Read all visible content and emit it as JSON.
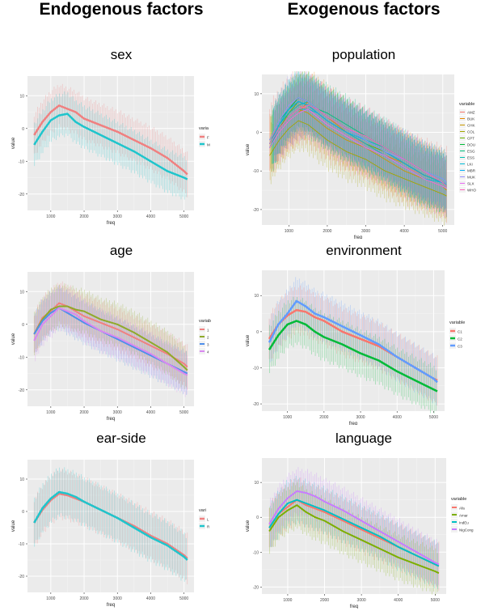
{
  "headers": {
    "left": "Endogenous factors",
    "right": "Exogenous factors"
  },
  "chart_data": [
    {
      "id": "sex",
      "type": "line",
      "title": "sex",
      "xlabel": "freq",
      "ylabel": "value",
      "x": [
        500,
        750,
        1000,
        1250,
        1500,
        1750,
        2000,
        2500,
        3000,
        3500,
        4000,
        4500,
        5000,
        5100
      ],
      "xticks": [
        1000,
        2000,
        3000,
        4000,
        5000
      ],
      "xticklabels": [
        "1000",
        "2000",
        "3000",
        "4000",
        "5000"
      ],
      "xlim": [
        300,
        5300
      ],
      "yticks": [
        10,
        0,
        -10,
        -20
      ],
      "yticklabels": [
        "10",
        "0",
        "-10",
        "-20"
      ],
      "ylim": [
        -25,
        16
      ],
      "legend_title": "varia",
      "series": [
        {
          "name": "F",
          "color": "#F08080",
          "lw": 2.5,
          "spread": 7,
          "values": [
            -2,
            2,
            5,
            7,
            6,
            5,
            3,
            1,
            -1,
            -3.5,
            -6,
            -9,
            -13,
            -14
          ]
        },
        {
          "name": "M",
          "color": "#1FC5CC",
          "lw": 2.5,
          "spread": 7,
          "values": [
            -5,
            -1,
            2.5,
            4,
            4.5,
            2,
            0.5,
            -2,
            -4.5,
            -7,
            -10,
            -13,
            -15,
            -15.5
          ]
        }
      ]
    },
    {
      "id": "age",
      "type": "line",
      "title": "age",
      "xlabel": "freq",
      "ylabel": "value",
      "x": [
        500,
        750,
        1000,
        1250,
        1500,
        1750,
        2000,
        2500,
        3000,
        3500,
        4000,
        4500,
        5000,
        5100
      ],
      "xticks": [
        1000,
        2000,
        3000,
        4000,
        5000
      ],
      "xticklabels": [
        "1000",
        "2000",
        "3000",
        "4000",
        "5000"
      ],
      "xlim": [
        300,
        5300
      ],
      "yticks": [
        10,
        0,
        -10,
        -20
      ],
      "yticklabels": [
        "10",
        "0",
        "-10",
        "-20"
      ],
      "ylim": [
        -25,
        16
      ],
      "legend_title": "variab",
      "series": [
        {
          "name": "1",
          "color": "#F08080",
          "lw": 2,
          "spread": 7,
          "values": [
            -3,
            2,
            4,
            6.5,
            5.5,
            4,
            2.5,
            0.5,
            -1.5,
            -4,
            -6.5,
            -9,
            -12,
            -13
          ]
        },
        {
          "name": "2",
          "color": "#8FAA2A",
          "lw": 2,
          "spread": 7,
          "values": [
            -3,
            1.5,
            4.5,
            5.5,
            5.5,
            4.5,
            4,
            1.5,
            0,
            -2.5,
            -5.5,
            -8.5,
            -13,
            -14
          ]
        },
        {
          "name": "3",
          "color": "#4E8FEA",
          "lw": 2,
          "spread": 7,
          "values": [
            -3,
            1,
            3.5,
            5,
            3.5,
            2,
            0.5,
            -2,
            -4.5,
            -7,
            -9.5,
            -12,
            -14.5,
            -15
          ]
        },
        {
          "name": "4",
          "color": "#D988F0",
          "lw": 2,
          "spread": 7,
          "values": [
            -5,
            0,
            2.5,
            5,
            4,
            3,
            1,
            -2,
            -4,
            -6.5,
            -9,
            -12,
            -15,
            -15.5
          ]
        }
      ]
    },
    {
      "id": "ear-side",
      "type": "line",
      "title": "ear-side",
      "xlabel": "freq",
      "ylabel": "value",
      "x": [
        500,
        750,
        1000,
        1250,
        1500,
        1750,
        2000,
        2500,
        3000,
        3500,
        4000,
        4500,
        5000,
        5100
      ],
      "xticks": [
        1000,
        2000,
        3000,
        4000,
        5000
      ],
      "xticklabels": [
        "1000",
        "2000",
        "3000",
        "4000",
        "5000"
      ],
      "xlim": [
        300,
        5300
      ],
      "yticks": [
        10,
        0,
        -10,
        -20
      ],
      "yticklabels": [
        "10",
        "0",
        "-10",
        "-20"
      ],
      "ylim": [
        -25,
        16
      ],
      "legend_title": "vari",
      "series": [
        {
          "name": "L",
          "color": "#F08080",
          "lw": 2.5,
          "spread": 8,
          "values": [
            -3.5,
            0.5,
            3.5,
            5.5,
            5,
            4,
            3,
            0.5,
            -2,
            -4.5,
            -7.5,
            -10,
            -13.5,
            -14.5
          ]
        },
        {
          "name": "R",
          "color": "#1FC5CC",
          "lw": 2.5,
          "spread": 8,
          "values": [
            -3.5,
            1,
            4,
            6,
            5.5,
            4.5,
            3,
            0.5,
            -2,
            -5,
            -8,
            -10.5,
            -14,
            -15
          ]
        }
      ]
    },
    {
      "id": "population",
      "type": "line",
      "title": "population",
      "xlabel": "freq",
      "ylabel": "value",
      "x": [
        500,
        750,
        1000,
        1250,
        1500,
        1750,
        2000,
        2500,
        3000,
        3500,
        4000,
        4500,
        5000,
        5100
      ],
      "xticks": [
        1000,
        2000,
        3000,
        4000,
        5000
      ],
      "xticklabels": [
        "1000",
        "2000",
        "3000",
        "4000",
        "5000"
      ],
      "xlim": [
        300,
        5300
      ],
      "yticks": [
        10,
        0,
        -10,
        -20
      ],
      "yticklabels": [
        "10",
        "0",
        "-10",
        "-20"
      ],
      "ylim": [
        -24,
        15
      ],
      "legend_title": "variable",
      "series": [
        {
          "name": "AMZ",
          "color": "#F8766D",
          "lw": 0.9,
          "spread": 10,
          "values": [
            -2,
            2,
            5,
            7,
            6,
            4,
            2,
            -1,
            -3,
            -6,
            -9,
            -11,
            -13,
            -13.5
          ]
        },
        {
          "name": "BUK",
          "color": "#E58700",
          "lw": 0.9,
          "spread": 9,
          "values": [
            -4,
            0,
            3,
            5,
            8,
            6,
            4,
            0,
            -3,
            -6,
            -8,
            -11,
            -13,
            -14
          ]
        },
        {
          "name": "CHK",
          "color": "#C99800",
          "lw": 0.9,
          "spread": 8,
          "values": [
            -3,
            1,
            4,
            6,
            5,
            3,
            1,
            -2,
            -4,
            -7,
            -10,
            -12,
            -14,
            -15
          ]
        },
        {
          "name": "COL",
          "color": "#A3A500",
          "lw": 0.9,
          "spread": 8,
          "values": [
            -6,
            -2,
            1,
            3,
            2,
            0,
            -2,
            -5,
            -7,
            -10,
            -12,
            -14,
            -16,
            -16.5
          ]
        },
        {
          "name": "CPT",
          "color": "#6BB100",
          "lw": 0.9,
          "spread": 8,
          "values": [
            -4,
            1,
            5,
            8,
            7,
            5,
            3,
            0,
            -3,
            -5,
            -8,
            -11,
            -13,
            -14
          ]
        },
        {
          "name": "DOU",
          "color": "#00BA38",
          "lw": 0.9,
          "spread": 8,
          "values": [
            -3,
            2,
            6,
            9,
            8,
            6,
            4,
            1,
            -2,
            -5,
            -8,
            -11,
            -13,
            -14
          ]
        },
        {
          "name": "ESG",
          "color": "#00BF7D",
          "lw": 0.9,
          "spread": 8,
          "values": [
            -2,
            3,
            6,
            8,
            7,
            6,
            5,
            2,
            -1,
            -4,
            -7,
            -10,
            -12,
            -13
          ]
        },
        {
          "name": "ESS",
          "color": "#00C0AF",
          "lw": 0.9,
          "spread": 8,
          "values": [
            -3,
            2,
            5,
            7,
            8,
            6,
            4,
            1,
            -2,
            -4,
            -7,
            -10,
            -12,
            -13
          ]
        },
        {
          "name": "LKI",
          "color": "#00BCD8",
          "lw": 0.9,
          "spread": 8,
          "values": [
            -4,
            1,
            4,
            6,
            6,
            5,
            3,
            0,
            -3,
            -6,
            -9,
            -12,
            -13,
            -14
          ]
        },
        {
          "name": "MBR",
          "color": "#00B0F6",
          "lw": 0.9,
          "spread": 8,
          "values": [
            -3,
            2,
            6,
            8,
            7,
            5,
            3,
            0,
            -2,
            -5,
            -8,
            -11,
            -13,
            -13.5
          ]
        },
        {
          "name": "MUK",
          "color": "#9590FF",
          "lw": 0.9,
          "spread": 8,
          "values": [
            -2,
            3,
            7,
            9,
            8,
            6,
            4,
            1,
            -2,
            -5,
            -7,
            -10,
            -12,
            -13
          ]
        },
        {
          "name": "SLX",
          "color": "#E76BF3",
          "lw": 0.9,
          "spread": 8,
          "values": [
            -4,
            0,
            3,
            5,
            6,
            4,
            2,
            -1,
            -4,
            -6,
            -9,
            -12,
            -14,
            -14.5
          ]
        },
        {
          "name": "WHO",
          "color": "#FF62BC",
          "lw": 0.9,
          "spread": 8,
          "values": [
            -3,
            1,
            4,
            6,
            7,
            6,
            4,
            1,
            -1,
            -4,
            -7,
            -10,
            -13,
            -14
          ]
        }
      ]
    },
    {
      "id": "environment",
      "type": "line",
      "title": "environment",
      "xlabel": "freq",
      "ylabel": "value",
      "x": [
        500,
        750,
        1000,
        1250,
        1500,
        1750,
        2000,
        2500,
        3000,
        3500,
        4000,
        4500,
        5000,
        5100
      ],
      "xticks": [
        1000,
        2000,
        3000,
        4000,
        5000
      ],
      "xticklabels": [
        "1000",
        "2000",
        "3000",
        "4000",
        "5000"
      ],
      "xlim": [
        300,
        5300
      ],
      "yticks": [
        10,
        0,
        -10,
        -20
      ],
      "yticklabels": [
        "10",
        "0",
        "-10",
        "-20"
      ],
      "ylim": [
        -22,
        17
      ],
      "legend_title": "variable",
      "series": [
        {
          "name": "C1",
          "color": "#F8766D",
          "lw": 2.5,
          "spread": 7,
          "values": [
            -2,
            2,
            4.5,
            6,
            5.5,
            4,
            3,
            0,
            -2,
            -4,
            -7,
            -10,
            -13,
            -13.5
          ]
        },
        {
          "name": "C2",
          "color": "#00BA38",
          "lw": 2.5,
          "spread": 7,
          "values": [
            -5,
            -1,
            2,
            3,
            2,
            0,
            -1.5,
            -3.5,
            -6,
            -8,
            -11,
            -13.5,
            -16,
            -16.5
          ]
        },
        {
          "name": "C3",
          "color": "#619CFF",
          "lw": 2.5,
          "spread": 7,
          "values": [
            -3,
            2,
            5,
            8.5,
            7,
            5,
            4,
            1.5,
            -1,
            -3.5,
            -7,
            -10,
            -13,
            -14
          ]
        }
      ]
    },
    {
      "id": "language",
      "type": "line",
      "title": "language",
      "xlabel": "freq",
      "ylabel": "value",
      "x": [
        500,
        750,
        1000,
        1250,
        1500,
        1750,
        2000,
        2500,
        3000,
        3500,
        4000,
        4500,
        5000,
        5100
      ],
      "xticks": [
        1000,
        2000,
        3000,
        4000,
        5000
      ],
      "xticklabels": [
        "1000",
        "2000",
        "3000",
        "4000",
        "5000"
      ],
      "xlim": [
        300,
        5300
      ],
      "yticks": [
        10,
        0,
        -10,
        -20
      ],
      "yticklabels": [
        "10",
        "0",
        "-10",
        "-20"
      ],
      "ylim": [
        -22,
        17
      ],
      "legend_title": "variable",
      "series": [
        {
          "name": "Afa",
          "color": "#F8766D",
          "lw": 2,
          "spread": 7,
          "values": [
            -3,
            1,
            3,
            5,
            3.5,
            2.5,
            1.5,
            -1,
            -3.5,
            -6,
            -8.5,
            -11,
            -13.5,
            -14
          ]
        },
        {
          "name": "Amar",
          "color": "#7CAE00",
          "lw": 2,
          "spread": 7,
          "values": [
            -4,
            0,
            2,
            3.5,
            1.5,
            0,
            -1,
            -4,
            -6.5,
            -9,
            -11.5,
            -13.5,
            -15.5,
            -16
          ]
        },
        {
          "name": "IndEu",
          "color": "#00BFC4",
          "lw": 2,
          "spread": 7,
          "values": [
            -3,
            1,
            4,
            5,
            4,
            3,
            2,
            -0.5,
            -3,
            -5.5,
            -8.5,
            -11,
            -13.5,
            -14
          ]
        },
        {
          "name": "NigCong",
          "color": "#C77CFF",
          "lw": 2,
          "spread": 7,
          "values": [
            -2,
            2.5,
            5.5,
            7.5,
            7,
            6,
            4.5,
            2,
            -1,
            -4,
            -7,
            -10,
            -13,
            -13.5
          ]
        }
      ]
    }
  ]
}
